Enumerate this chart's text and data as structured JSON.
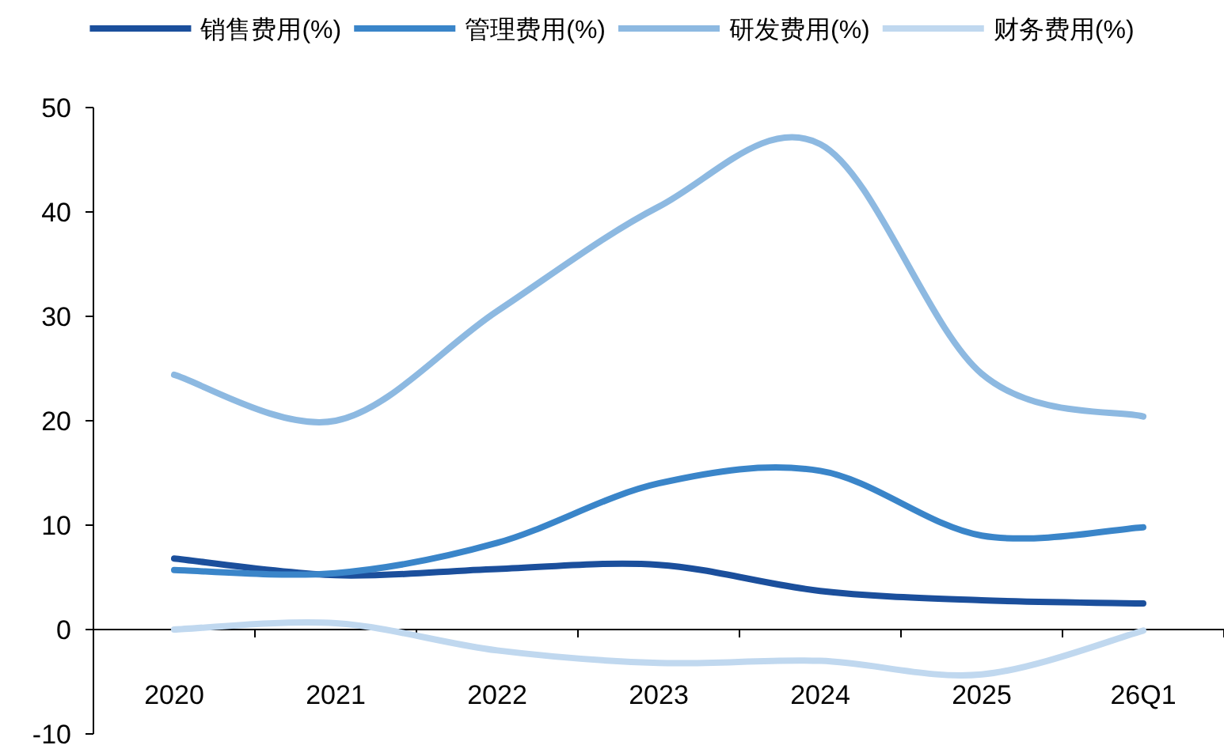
{
  "chart_data": {
    "type": "line",
    "categories": [
      "2020",
      "2021",
      "2022",
      "2023",
      "2024",
      "2025",
      "26Q1"
    ],
    "series": [
      {
        "name": "销售费用(%)",
        "color": "#1b4f9c",
        "values": [
          6.8,
          5.2,
          5.8,
          6.2,
          3.7,
          2.8,
          2.5
        ]
      },
      {
        "name": "管理费用(%)",
        "color": "#3a85c9",
        "values": [
          5.7,
          5.4,
          8.3,
          14.0,
          15.2,
          9.0,
          9.8
        ]
      },
      {
        "name": "研发费用(%)",
        "color": "#8db9e1",
        "values": [
          24.4,
          20.0,
          30.5,
          40.5,
          46.5,
          24.5,
          20.4
        ]
      },
      {
        "name": "财务费用(%)",
        "color": "#c0d8ef",
        "values": [
          0,
          0.6,
          -2.0,
          -3.2,
          -3.0,
          -4.3,
          -0.1
        ]
      }
    ],
    "ylim": [
      -10,
      50
    ],
    "yticks": [
      -10,
      0,
      10,
      20,
      30,
      40,
      50
    ],
    "legend": "top"
  }
}
